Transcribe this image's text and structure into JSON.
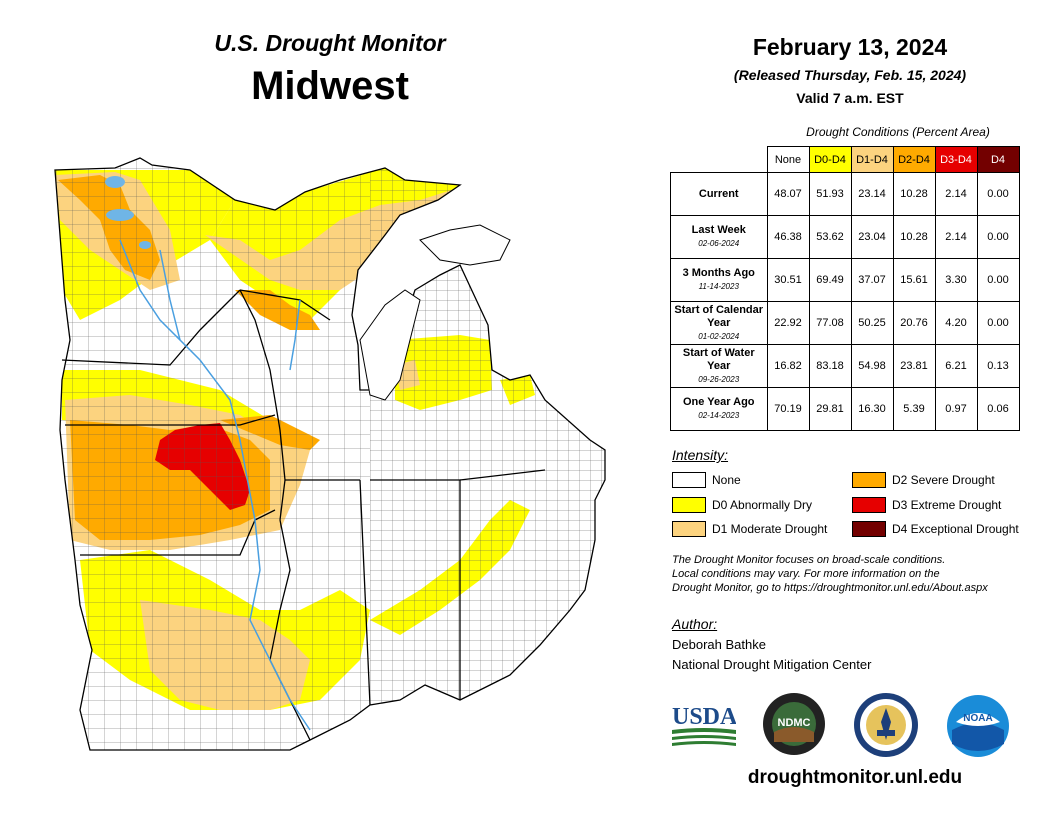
{
  "header": {
    "title_top": "U.S. Drought Monitor",
    "title_main": "Midwest",
    "date": "February 13, 2024",
    "released": "(Released Thursday, Feb. 15, 2024)",
    "valid": "Valid 7 a.m. EST"
  },
  "table": {
    "caption": "Drought Conditions (Percent Area)",
    "columns": [
      "None",
      "D0-D4",
      "D1-D4",
      "D2-D4",
      "D3-D4",
      "D4"
    ],
    "column_colors": [
      "#ffffff",
      "#ffff00",
      "#fcd37f",
      "#ffaa00",
      "#e60000",
      "#730000"
    ],
    "rows": [
      {
        "label": "Current",
        "sublabel": "",
        "values": [
          "48.07",
          "51.93",
          "23.14",
          "10.28",
          "2.14",
          "0.00"
        ]
      },
      {
        "label": "Last Week",
        "sublabel": "02-06-2024",
        "values": [
          "46.38",
          "53.62",
          "23.04",
          "10.28",
          "2.14",
          "0.00"
        ]
      },
      {
        "label": "3 Months Ago",
        "sublabel": "11-14-2023",
        "values": [
          "30.51",
          "69.49",
          "37.07",
          "15.61",
          "3.30",
          "0.00"
        ]
      },
      {
        "label": "Start of Calendar Year",
        "sublabel": "01-02-2024",
        "values": [
          "22.92",
          "77.08",
          "50.25",
          "20.76",
          "4.20",
          "0.00"
        ]
      },
      {
        "label": "Start of Water Year",
        "sublabel": "09-26-2023",
        "values": [
          "16.82",
          "83.18",
          "54.98",
          "23.81",
          "6.21",
          "0.13"
        ]
      },
      {
        "label": "One Year Ago",
        "sublabel": "02-14-2023",
        "values": [
          "70.19",
          "29.81",
          "16.30",
          "5.39",
          "0.97",
          "0.06"
        ]
      }
    ]
  },
  "legend": {
    "title": "Intensity:",
    "items": [
      {
        "label": "None",
        "color": "#ffffff"
      },
      {
        "label": "D0 Abnormally Dry",
        "color": "#ffff00"
      },
      {
        "label": "D1 Moderate Drought",
        "color": "#fcd37f"
      },
      {
        "label": "D2 Severe Drought",
        "color": "#ffaa00"
      },
      {
        "label": "D3 Extreme Drought",
        "color": "#e60000"
      },
      {
        "label": "D4 Exceptional Drought",
        "color": "#730000"
      }
    ]
  },
  "note": {
    "line1": "The Drought Monitor focuses on broad-scale conditions.",
    "line2": "Local conditions may vary. For more information on the",
    "line3": "Drought Monitor, go to https://droughtmonitor.unl.edu/About.aspx"
  },
  "author": {
    "title": "Author:",
    "name": "Deborah Bathke",
    "org": "National Drought Mitigation Center"
  },
  "logos": {
    "usda": "USDA",
    "ndmc": "NDMC",
    "noaa": "NOAA"
  },
  "footer": {
    "url": "droughtmonitor.unl.edu"
  },
  "colors": {
    "water": "#6fb5e6",
    "river": "#4a9fe0",
    "d0": "#ffff00",
    "d1": "#fcd37f",
    "d2": "#ffaa00",
    "d3": "#e60000"
  }
}
